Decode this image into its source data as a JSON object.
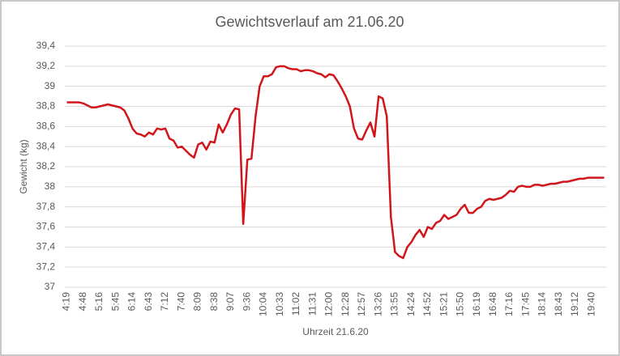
{
  "chart_data": {
    "type": "line",
    "title": "Gewichtsverlauf am 21.06.20",
    "x_label": "Uhrzeit 21.6.20",
    "y_label": "Gewicht (kg)",
    "color": "#d0161b",
    "grid": true,
    "ylim": [
      37,
      39.4
    ],
    "yticks": [
      37,
      {
        "value": 37.2,
        "label": "37,2"
      },
      {
        "value": 37.4,
        "label": "37,4"
      },
      {
        "value": 37.6,
        "label": "37,6"
      },
      {
        "value": 37.8,
        "label": "37,8"
      },
      38,
      {
        "value": 38.2,
        "label": "38,2"
      },
      {
        "value": 38.4,
        "label": "38,4"
      },
      {
        "value": 38.6,
        "label": "38,6"
      },
      {
        "value": 38.8,
        "label": "38,8"
      },
      39,
      {
        "value": 39.2,
        "label": "39,2"
      },
      {
        "value": 39.4,
        "label": "39,4"
      }
    ],
    "categories": [
      "4:19",
      null,
      null,
      null,
      "4:48",
      null,
      null,
      null,
      "5:16",
      null,
      null,
      null,
      "5:45",
      null,
      null,
      null,
      "6:14",
      null,
      null,
      null,
      "6:43",
      null,
      null,
      null,
      "7:12",
      null,
      null,
      null,
      "7:40",
      null,
      null,
      null,
      "8:09",
      null,
      null,
      null,
      "8:38",
      null,
      null,
      null,
      "9:07",
      null,
      null,
      null,
      "9:36",
      null,
      null,
      null,
      "10:04",
      null,
      null,
      null,
      "10:33",
      null,
      null,
      null,
      "11:02",
      null,
      null,
      null,
      "11:31",
      null,
      null,
      null,
      "12:00",
      null,
      null,
      null,
      "12:28",
      null,
      null,
      null,
      "12:57",
      null,
      null,
      null,
      "13:26",
      null,
      null,
      null,
      "13:55",
      null,
      null,
      null,
      "14:24",
      null,
      null,
      null,
      "14:52",
      null,
      null,
      null,
      "15:21",
      null,
      null,
      null,
      "15:50",
      null,
      null,
      null,
      "16:19",
      null,
      null,
      null,
      "16:48",
      null,
      null,
      null,
      "17:16",
      null,
      null,
      null,
      "17:45",
      null,
      null,
      null,
      "18:14",
      null,
      null,
      null,
      "18:43",
      null,
      null,
      null,
      "19:12",
      null,
      null,
      null,
      "19:40",
      null,
      null,
      null
    ],
    "values": [
      38.84,
      38.84,
      38.84,
      38.84,
      38.83,
      38.81,
      38.79,
      38.79,
      38.8,
      38.81,
      38.82,
      38.81,
      38.8,
      38.79,
      38.76,
      38.68,
      38.58,
      38.53,
      38.52,
      38.5,
      38.54,
      38.52,
      38.58,
      38.57,
      38.58,
      38.48,
      38.46,
      38.39,
      38.4,
      38.36,
      38.32,
      38.29,
      38.42,
      38.44,
      38.37,
      38.45,
      38.44,
      38.62,
      38.54,
      38.62,
      38.72,
      38.78,
      38.77,
      37.63,
      38.27,
      38.28,
      38.7,
      39.0,
      39.1,
      39.1,
      39.12,
      39.19,
      39.2,
      39.2,
      39.18,
      39.17,
      39.17,
      39.15,
      39.16,
      39.16,
      39.15,
      39.13,
      39.12,
      39.09,
      39.12,
      39.11,
      39.05,
      38.98,
      38.9,
      38.8,
      38.58,
      38.48,
      38.47,
      38.56,
      38.64,
      38.5,
      38.9,
      38.88,
      38.7,
      37.7,
      37.35,
      37.31,
      37.29,
      37.4,
      37.45,
      37.52,
      37.57,
      37.5,
      37.6,
      37.58,
      37.64,
      37.66,
      37.72,
      37.68,
      37.7,
      37.72,
      37.78,
      37.82,
      37.74,
      37.74,
      37.78,
      37.8,
      37.86,
      37.88,
      37.87,
      37.88,
      37.89,
      37.92,
      37.96,
      37.95,
      38.0,
      38.01,
      38.0,
      38.0,
      38.02,
      38.02,
      38.01,
      38.02,
      38.03,
      38.03,
      38.04,
      38.05,
      38.05,
      38.06,
      38.07,
      38.08,
      38.08,
      38.09,
      38.09,
      38.09,
      38.09,
      38.09
    ]
  }
}
